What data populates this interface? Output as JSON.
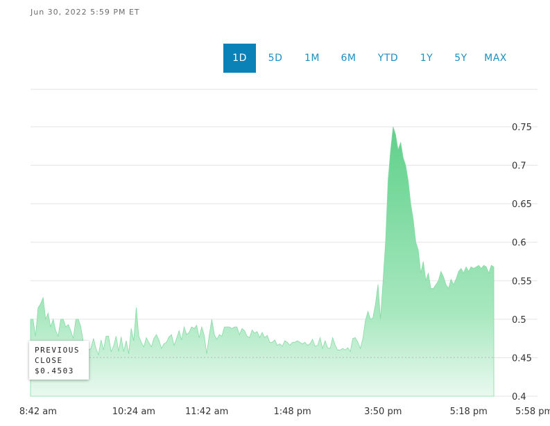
{
  "timestamp": "Jun 30, 2022 5:59 PM ET",
  "range_tabs": [
    {
      "label": "1D",
      "active": true
    },
    {
      "label": "5D",
      "active": false
    },
    {
      "label": "1M",
      "active": false
    },
    {
      "label": "6M",
      "active": false
    },
    {
      "label": "YTD",
      "active": false
    },
    {
      "label": "1Y",
      "active": false
    },
    {
      "label": "5Y",
      "active": false
    },
    {
      "label": "MAX",
      "active": false
    }
  ],
  "previous_close": {
    "line1": "PREVIOUS",
    "line2": "CLOSE",
    "value": "$0.4503",
    "level": 0.4503
  },
  "colors": {
    "accent": "#0a82b8",
    "tab_text": "#1a8fc4",
    "area_top": "#5fd08a",
    "area_bottom": "#e9f9ef",
    "grid": "#e3e3e3"
  },
  "chart_data": {
    "type": "area",
    "ylim": [
      0.4,
      0.75
    ],
    "yticks": [
      0.75,
      0.7,
      0.65,
      0.6,
      0.55,
      0.5,
      0.45,
      0.4
    ],
    "ytick_labels": [
      "0.75",
      "0.7",
      "0.65",
      "0.6",
      "0.55",
      "0.5",
      "0.45",
      "0.4"
    ],
    "xtick_labels": [
      "8:42 am",
      "10:24 am",
      "11:42 am",
      "1:48 pm",
      "3:50 pm",
      "5:18 pm",
      "5:58 pm"
    ],
    "xtick_index": [
      3,
      41,
      70,
      104,
      140,
      174,
      200
    ],
    "grid": true,
    "values": [
      0.5,
      0.5,
      0.478,
      0.515,
      0.52,
      0.528,
      0.5,
      0.508,
      0.49,
      0.5,
      0.485,
      0.478,
      0.5,
      0.5,
      0.49,
      0.493,
      0.485,
      0.475,
      0.5,
      0.5,
      0.49,
      0.47,
      0.47,
      0.46,
      0.462,
      0.475,
      0.462,
      0.454,
      0.473,
      0.46,
      0.478,
      0.478,
      0.458,
      0.465,
      0.478,
      0.458,
      0.477,
      0.458,
      0.472,
      0.455,
      0.488,
      0.472,
      0.515,
      0.478,
      0.47,
      0.464,
      0.476,
      0.47,
      0.464,
      0.475,
      0.48,
      0.473,
      0.462,
      0.468,
      0.47,
      0.477,
      0.48,
      0.466,
      0.475,
      0.485,
      0.473,
      0.49,
      0.48,
      0.483,
      0.49,
      0.488,
      0.492,
      0.476,
      0.49,
      0.479,
      0.455,
      0.48,
      0.5,
      0.48,
      0.474,
      0.48,
      0.478,
      0.49,
      0.49,
      0.49,
      0.488,
      0.49,
      0.49,
      0.48,
      0.488,
      0.485,
      0.478,
      0.476,
      0.486,
      0.482,
      0.484,
      0.476,
      0.483,
      0.476,
      0.479,
      0.47,
      0.47,
      0.473,
      0.466,
      0.468,
      0.465,
      0.472,
      0.47,
      0.466,
      0.47,
      0.47,
      0.472,
      0.47,
      0.468,
      0.47,
      0.466,
      0.468,
      0.474,
      0.465,
      0.466,
      0.476,
      0.462,
      0.472,
      0.463,
      0.462,
      0.476,
      0.466,
      0.46,
      0.46,
      0.462,
      0.46,
      0.463,
      0.458,
      0.475,
      0.476,
      0.47,
      0.462,
      0.475,
      0.498,
      0.51,
      0.5,
      0.502,
      0.52,
      0.545,
      0.5,
      0.55,
      0.6,
      0.68,
      0.72,
      0.75,
      0.74,
      0.72,
      0.73,
      0.71,
      0.7,
      0.68,
      0.65,
      0.63,
      0.6,
      0.59,
      0.56,
      0.575,
      0.55,
      0.56,
      0.54,
      0.54,
      0.545,
      0.55,
      0.562,
      0.555,
      0.545,
      0.54,
      0.552,
      0.545,
      0.552,
      0.562,
      0.566,
      0.56,
      0.568,
      0.562,
      0.568,
      0.566,
      0.568,
      0.57,
      0.566,
      0.57,
      0.568,
      0.56,
      0.57,
      0.568
    ]
  }
}
